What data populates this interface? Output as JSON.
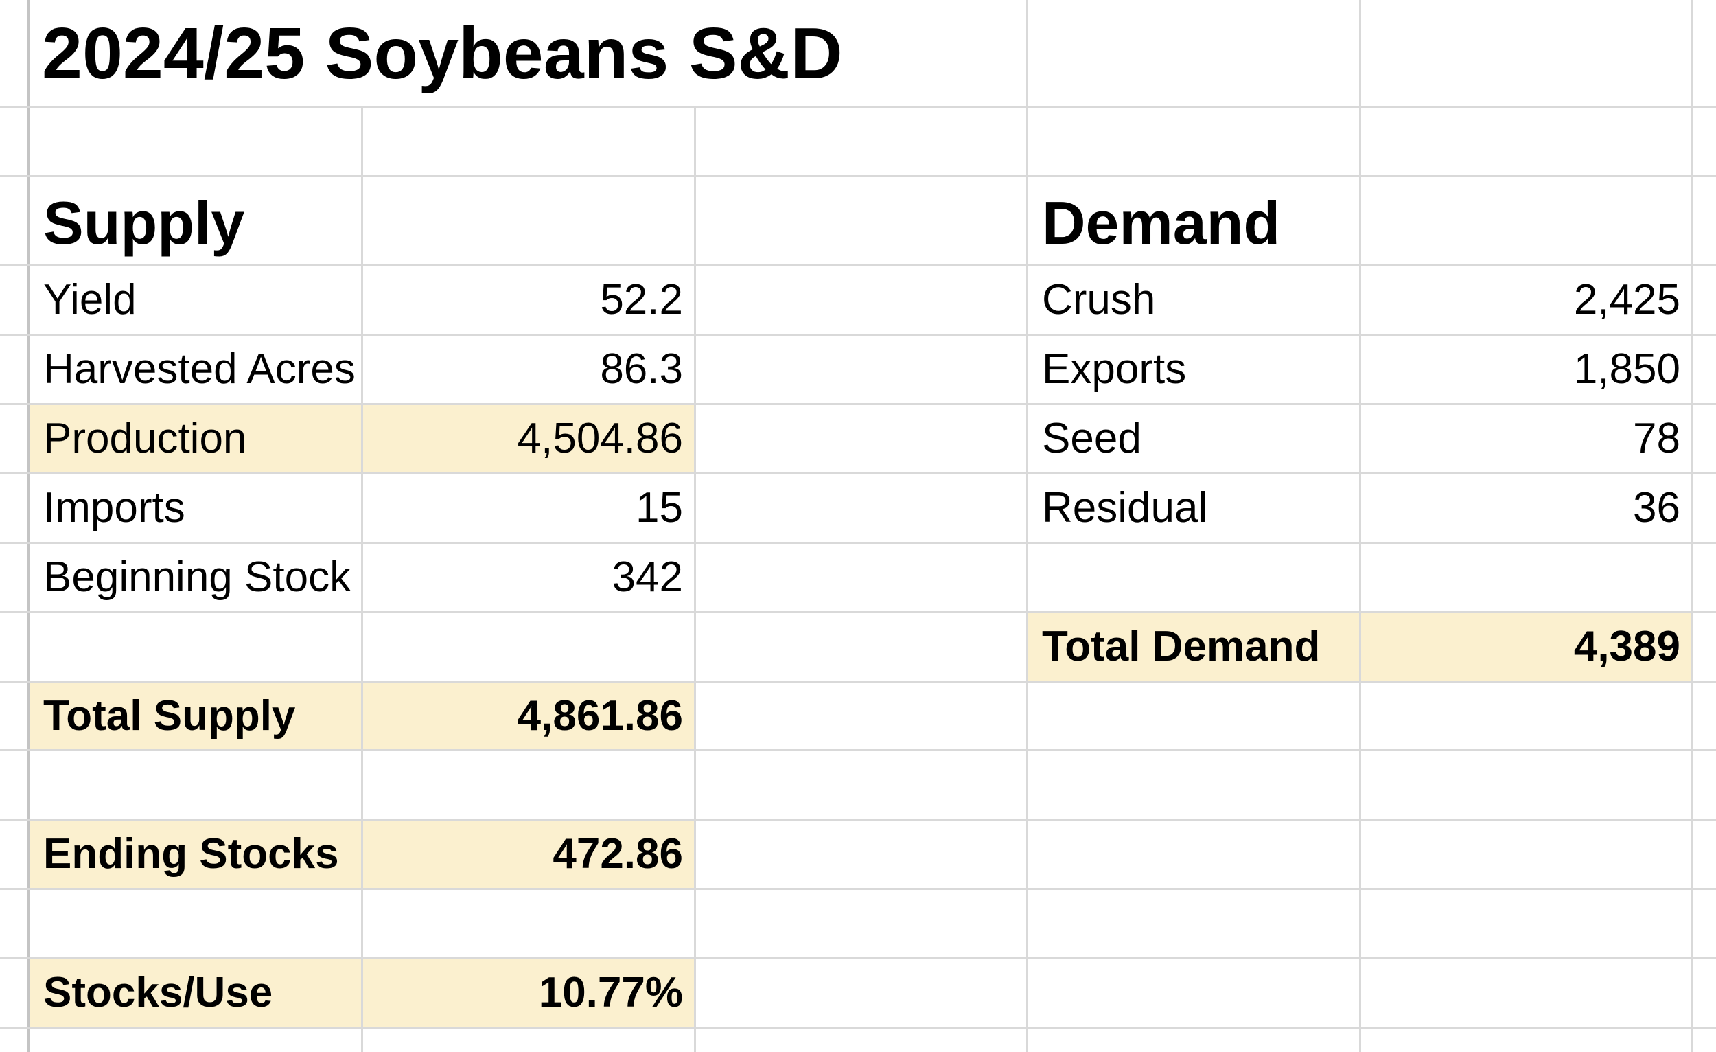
{
  "title": "2024/25 Soybeans S&D",
  "supply": {
    "header": "Supply",
    "rows": [
      {
        "label": "Yield",
        "value": "52.2"
      },
      {
        "label": "Harvested Acres",
        "value": "86.3"
      },
      {
        "label": "Production",
        "value": "4,504.86"
      },
      {
        "label": "Imports",
        "value": "15"
      },
      {
        "label": "Beginning Stock",
        "value": "342"
      }
    ],
    "total": {
      "label": "Total Supply",
      "value": "4,861.86"
    }
  },
  "ending_stocks": {
    "label": "Ending Stocks",
    "value": "472.86"
  },
  "stocks_use": {
    "label": "Stocks/Use",
    "value": "10.77%"
  },
  "demand": {
    "header": "Demand",
    "rows": [
      {
        "label": "Crush",
        "value": "2,425"
      },
      {
        "label": "Exports",
        "value": "1,850"
      },
      {
        "label": "Seed",
        "value": "78"
      },
      {
        "label": "Residual",
        "value": "36"
      }
    ],
    "total": {
      "label": "Total Demand",
      "value": "4,389"
    }
  },
  "colors": {
    "highlight": "#fbf0cf",
    "gridline": "#d9d9d9"
  }
}
